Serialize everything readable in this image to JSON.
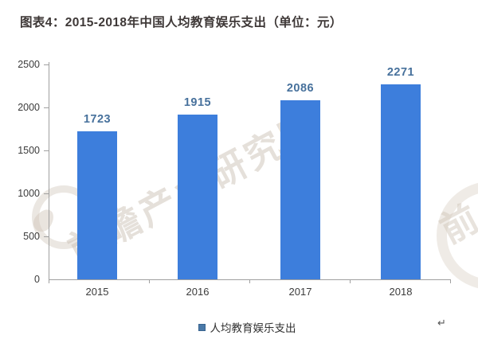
{
  "title": "图表4：2015-2018年中国人均教育娱乐支出（单位：元）",
  "chart_data": {
    "type": "bar",
    "title": "图表4：2015-2018年中国人均教育娱乐支出（单位：元）",
    "categories": [
      "2015",
      "2016",
      "2017",
      "2018"
    ],
    "values": [
      1723,
      1915,
      2086,
      2271
    ],
    "series_name": "人均教育娱乐支出",
    "unit": "元",
    "ylim": [
      0,
      2500
    ],
    "ytick_labels": [
      "2500",
      "2000",
      "1500",
      "1000",
      "500",
      "0"
    ],
    "grid": false,
    "legend_position": "bottom",
    "bar_color": "#3d7edc",
    "value_label_color": "#47719c",
    "axis_color": "#a0a0a0",
    "legend": {
      "marker_color": "#4a79a8",
      "label": "人均教育娱乐支出"
    }
  },
  "watermark": {
    "text": "前瞻产业研究院",
    "partial_char": "前"
  },
  "misc": {
    "return_mark": "↵"
  }
}
